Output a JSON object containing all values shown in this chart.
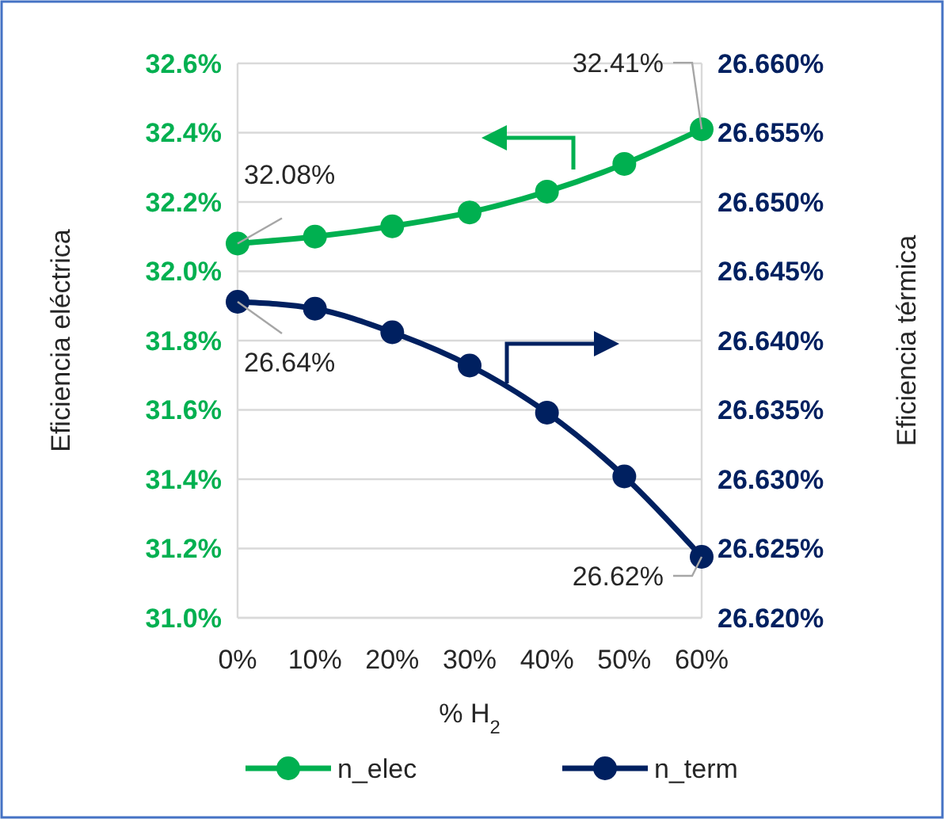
{
  "chart_data": {
    "type": "line",
    "xlabel": "% H$_{2}$",
    "ylabel": "Eficiencia eléctrica",
    "y2label": "Eficiencia térmica",
    "categories": [
      "0%",
      "10%",
      "20%",
      "30%",
      "40%",
      "50%",
      "60%"
    ],
    "series": [
      {
        "name": "n_elec",
        "color": "#00b050",
        "values": [
          32.08,
          32.1,
          32.13,
          32.17,
          32.23,
          32.31,
          32.41
        ],
        "value_labels": [
          "32.08%",
          null,
          null,
          null,
          null,
          null,
          "32.41%"
        ]
      },
      {
        "name": "n_term",
        "color": "#002060",
        "axis": "y2",
        "values": [
          26.6428,
          26.6423,
          26.6406,
          26.6382,
          26.6348,
          26.6302,
          26.6244
        ],
        "value_labels": [
          "26.64%",
          null,
          null,
          null,
          null,
          null,
          "26.62%"
        ]
      }
    ],
    "ylim": [
      31.0,
      32.6
    ],
    "yticks": [
      {
        "value": 31.0,
        "label": "31.0%"
      },
      {
        "value": 31.2,
        "label": "31.2%"
      },
      {
        "value": 31.4,
        "label": "31.4%"
      },
      {
        "value": 31.6,
        "label": "31.6%"
      },
      {
        "value": 31.8,
        "label": "31.8%"
      },
      {
        "value": 32.0,
        "label": "32.0%"
      },
      {
        "value": 32.2,
        "label": "32.2%"
      },
      {
        "value": 32.4,
        "label": "32.4%"
      },
      {
        "value": 32.6,
        "label": "32.6%"
      }
    ],
    "y2lim": [
      26.62,
      26.66
    ],
    "y2ticks": [
      {
        "value": 26.62,
        "label": "26.620%"
      },
      {
        "value": 26.625,
        "label": "26.625%"
      },
      {
        "value": 26.63,
        "label": "26.630%"
      },
      {
        "value": 26.635,
        "label": "26.635%"
      },
      {
        "value": 26.64,
        "label": "26.640%"
      },
      {
        "value": 26.645,
        "label": "26.645%"
      },
      {
        "value": 26.65,
        "label": "26.650%"
      },
      {
        "value": 26.655,
        "label": "26.655%"
      },
      {
        "value": 26.66,
        "label": "26.660%"
      }
    ],
    "grid": "y",
    "legend": "bottom",
    "marker": "circle",
    "line_style": "solid"
  }
}
